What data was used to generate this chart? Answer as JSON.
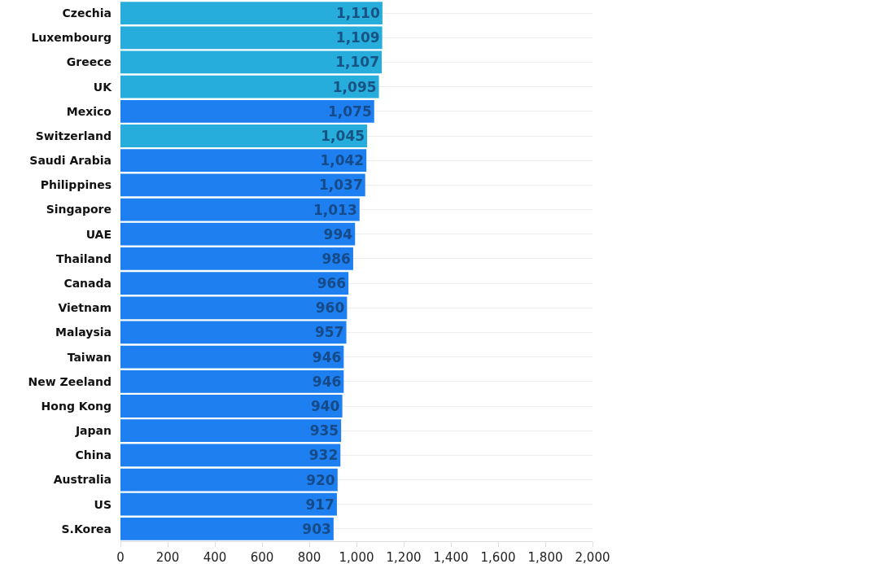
{
  "chart_data": {
    "type": "bar",
    "orientation": "horizontal",
    "categories": [
      "Czechia",
      "Luxembourg",
      "Greece",
      "UK",
      "Mexico",
      "Switzerland",
      "Saudi Arabia",
      "Philippines",
      "Singapore",
      "UAE",
      "Thailand",
      "Canada",
      "Vietnam",
      "Malaysia",
      "Taiwan",
      "New Zeeland",
      "Hong Kong",
      "Japan",
      "China",
      "Australia",
      "US",
      "S.Korea"
    ],
    "values": [
      1110,
      1109,
      1107,
      1095,
      1075,
      1045,
      1042,
      1037,
      1013,
      994,
      986,
      966,
      960,
      957,
      946,
      946,
      940,
      935,
      932,
      920,
      917,
      903
    ],
    "colors": [
      "#27addb",
      "#27addb",
      "#27addb",
      "#27addb",
      "#1e80f0",
      "#27addb",
      "#1e80f0",
      "#1e80f0",
      "#1e80f0",
      "#1e80f0",
      "#1e80f0",
      "#1e80f0",
      "#1e80f0",
      "#1e80f0",
      "#1e80f0",
      "#1e80f0",
      "#1e80f0",
      "#1e80f0",
      "#1e80f0",
      "#1e80f0",
      "#1e80f0",
      "#1e80f0"
    ],
    "xlim": [
      0,
      2000
    ],
    "xticks": [
      0,
      {
        "value": 200,
        "label": "200"
      },
      {
        "value": 400,
        "label": "400"
      },
      {
        "value": 600,
        "label": "600"
      },
      {
        "value": 800,
        "label": "800"
      },
      {
        "value": 1000,
        "label": "1,000"
      },
      {
        "value": 1200,
        "label": "1,200"
      },
      {
        "value": 1400,
        "label": "1,400"
      },
      {
        "value": 1600,
        "label": "1,600"
      },
      {
        "value": 1800,
        "label": "1,800"
      },
      {
        "value": 2000,
        "label": "2,000"
      }
    ],
    "value_labels": [
      "1,110",
      "1,109",
      "1,107",
      "1,095",
      "1,075",
      "1,045",
      "1,042",
      "1,037",
      "1,013",
      "994",
      "986",
      "966",
      "960",
      "957",
      "946",
      "946",
      "940",
      "935",
      "932",
      "920",
      "917",
      "903"
    ],
    "grid": "y"
  }
}
